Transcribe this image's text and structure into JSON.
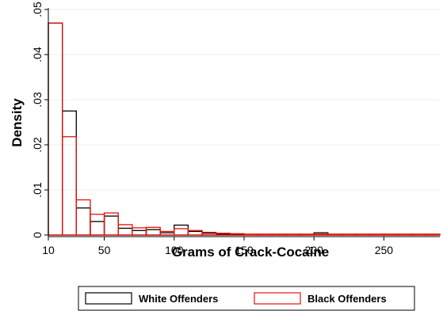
{
  "chart_data": {
    "type": "bar",
    "xlabel": "Grams of Crack-Cocaine",
    "ylabel": "Density",
    "xlim": [
      10,
      290
    ],
    "ylim": [
      0,
      0.05
    ],
    "x_ticks": [
      10,
      50,
      100,
      150,
      200,
      250
    ],
    "x_tick_labels": [
      "10",
      "50",
      "100",
      "150",
      "200",
      "250"
    ],
    "y_ticks": [
      0,
      0.01,
      0.02,
      0.03,
      0.04,
      0.05
    ],
    "y_tick_labels": [
      "0",
      ".01",
      ".02",
      ".03",
      ".04",
      ".05"
    ],
    "grid": true,
    "legend_position": "bottom",
    "bin_edges": [
      10,
      20,
      30,
      40,
      50,
      60,
      70,
      80,
      90,
      100,
      110,
      120,
      130,
      140,
      150,
      160,
      170,
      180,
      190,
      200,
      210,
      220,
      230,
      240,
      250,
      260,
      270,
      280,
      290
    ],
    "series": [
      {
        "name": "White Offenders",
        "color": "#000000",
        "values": [
          0.047,
          0.0275,
          0.006,
          0.003,
          0.0042,
          0.0015,
          0.001,
          0.0012,
          0.0005,
          0.0022,
          0.0008,
          0.0004,
          0.0002,
          0.0002,
          0.0001,
          0.0001,
          0.0001,
          0.0001,
          0.0001,
          0.0005,
          0.0001,
          0.0001,
          0.0001,
          0.0001,
          0.0001,
          0.0001,
          0.0001,
          0.0001
        ]
      },
      {
        "name": "Black Offenders",
        "color": "#e3120b",
        "values": [
          0.047,
          0.0218,
          0.0078,
          0.0046,
          0.0049,
          0.0023,
          0.0016,
          0.0017,
          0.0008,
          0.0014,
          0.001,
          0.0006,
          0.0004,
          0.0003,
          0.0002,
          0.0002,
          0.0002,
          0.0002,
          0.0002,
          0.0002,
          0.0002,
          0.0002,
          0.0002,
          0.0002,
          0.0002,
          0.0002,
          0.0002,
          0.0002
        ]
      }
    ]
  }
}
